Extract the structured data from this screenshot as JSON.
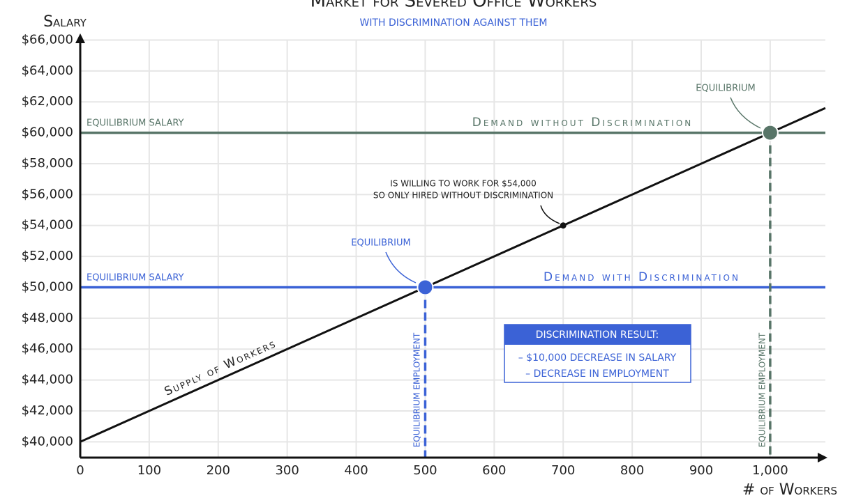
{
  "chart_data": {
    "type": "line",
    "title": "Market for Severed Office Workers",
    "subtitle": "with discrimination against them",
    "x_label": "# of Workers",
    "y_label": "Salary",
    "xlim": [
      0,
      1080
    ],
    "ylim": [
      39000,
      66000
    ],
    "xticks": [
      0,
      100,
      200,
      300,
      400,
      500,
      600,
      700,
      800,
      900,
      {
        "value": 1000,
        "label": "1,000"
      }
    ],
    "yticks": [
      {
        "value": 40000,
        "label": "$40,000"
      },
      {
        "value": 42000,
        "label": "$42,000"
      },
      {
        "value": 44000,
        "label": "$44,000"
      },
      {
        "value": 46000,
        "label": "$46,000"
      },
      {
        "value": 48000,
        "label": "$48,000"
      },
      {
        "value": 50000,
        "label": "$50,000"
      },
      {
        "value": 52000,
        "label": "$52,000"
      },
      {
        "value": 54000,
        "label": "$54,000"
      },
      {
        "value": 56000,
        "label": "$56,000"
      },
      {
        "value": 58000,
        "label": "$58,000"
      },
      {
        "value": 60000,
        "label": "$60,000"
      },
      {
        "value": 62000,
        "label": "$62,000"
      },
      {
        "value": 64000,
        "label": "$64,000"
      },
      {
        "value": 66000,
        "label": "$66,000"
      }
    ],
    "grid": true,
    "series": [
      {
        "name": "Supply of Workers",
        "color": "#111111",
        "x": [
          0,
          1080
        ],
        "values": [
          40000,
          61600
        ]
      },
      {
        "name": "Demand without Discrimination",
        "color": "#587568",
        "x": [
          0,
          1080
        ],
        "values": [
          60000,
          60000
        ]
      },
      {
        "name": "Demand with Discrimination",
        "color": "#3b62d6",
        "x": [
          0,
          1080
        ],
        "values": [
          50000,
          50000
        ]
      }
    ],
    "points": [
      {
        "label": "Equilibrium",
        "x": 500,
        "y": 50000,
        "color": "#3b62d6"
      },
      {
        "label": "Equilibrium",
        "x": 1000,
        "y": 60000,
        "color": "#587568"
      },
      {
        "x": 700,
        "y": 54000,
        "color": "#111111"
      }
    ],
    "annotations": [
      "Equilibrium salary",
      "Equilibrium salary",
      "Equilibrium employment",
      "Equilibrium employment",
      "is willing to work for $54,000",
      "so only hired without discrimination"
    ],
    "box": {
      "title": "Discrimination result:",
      "lines": [
        "– $10,000 decrease in salary",
        "– decrease in employment"
      ]
    }
  }
}
